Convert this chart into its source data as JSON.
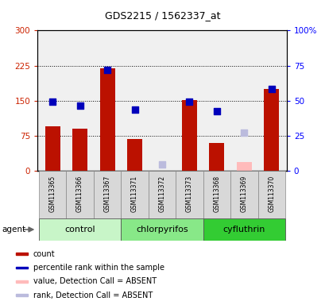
{
  "title": "GDS2215 / 1562337_at",
  "samples": [
    "GSM113365",
    "GSM113366",
    "GSM113367",
    "GSM113371",
    "GSM113372",
    "GSM113373",
    "GSM113368",
    "GSM113369",
    "GSM113370"
  ],
  "groups": [
    {
      "name": "control",
      "indices": [
        0,
        1,
        2
      ],
      "color": "#c8f5c8"
    },
    {
      "name": "chlorpyrifos",
      "indices": [
        3,
        4,
        5
      ],
      "color": "#88e888"
    },
    {
      "name": "cyfluthrin",
      "indices": [
        6,
        7,
        8
      ],
      "color": "#33cc33"
    }
  ],
  "bar_values": [
    95,
    90,
    220,
    68,
    null,
    152,
    60,
    null,
    175
  ],
  "bar_absent": [
    null,
    null,
    null,
    null,
    null,
    null,
    null,
    18,
    null
  ],
  "dot_values_left": [
    148,
    140,
    215,
    130,
    null,
    148,
    128,
    null,
    175
  ],
  "dot_absent_left": [
    null,
    null,
    null,
    null,
    14,
    null,
    null,
    82,
    null
  ],
  "bar_color": "#bb1100",
  "bar_absent_color": "#ffbbbb",
  "dot_color": "#0000bb",
  "dot_absent_color": "#bbbbdd",
  "left_ylim": [
    0,
    300
  ],
  "right_ylim": [
    0,
    100
  ],
  "left_yticks": [
    0,
    75,
    150,
    225,
    300
  ],
  "right_yticks": [
    0,
    25,
    50,
    75,
    100
  ],
  "left_yticklabels": [
    "0",
    "75",
    "150",
    "225",
    "300"
  ],
  "right_yticklabels": [
    "0",
    "25",
    "50",
    "75",
    "100%"
  ],
  "hlines": [
    75,
    150,
    225
  ],
  "legend_items": [
    {
      "label": "count",
      "color": "#bb1100"
    },
    {
      "label": "percentile rank within the sample",
      "color": "#0000bb"
    },
    {
      "label": "value, Detection Call = ABSENT",
      "color": "#ffbbbb"
    },
    {
      "label": "rank, Detection Call = ABSENT",
      "color": "#bbbbdd"
    }
  ],
  "agent_label": "agent",
  "bar_width": 0.55,
  "dot_size": 40,
  "title_fontsize": 9,
  "tick_fontsize": 7.5,
  "sample_fontsize": 5.5,
  "group_fontsize": 8,
  "legend_fontsize": 7
}
